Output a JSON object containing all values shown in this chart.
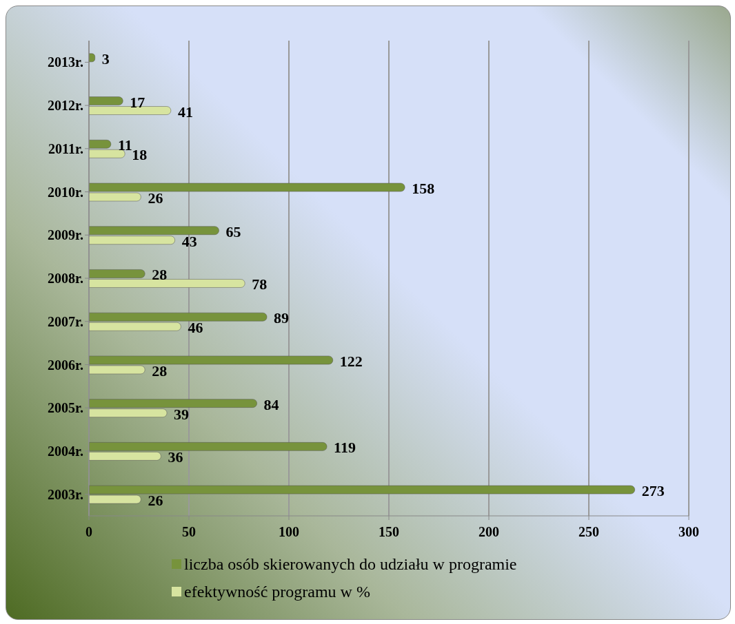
{
  "chart_data": {
    "type": "bar",
    "orientation": "horizontal",
    "categories": [
      "2013r.",
      "2012r.",
      "2011r.",
      "2010r.",
      "2009r.",
      "2008r.",
      "2007r.",
      "2006r.",
      "2005r.",
      "2004r.",
      "2003r."
    ],
    "series": [
      {
        "name": "liczba osób skierowanych do udziału w programie",
        "color": "#77933c",
        "values": [
          3,
          17,
          11,
          158,
          65,
          28,
          89,
          122,
          84,
          119,
          273
        ],
        "value_labels": [
          "3",
          "17",
          "11",
          "158",
          "65",
          "28",
          "89",
          "122",
          "84",
          "119",
          "273"
        ]
      },
      {
        "name": "efektywność programu w %",
        "color": "#d7e4a0",
        "values": [
          0,
          41,
          18,
          26,
          43,
          78,
          46,
          28,
          39,
          36,
          26
        ],
        "value_labels": [
          null,
          "41",
          "18",
          "26",
          "43",
          "78",
          "46",
          "28",
          "39",
          "36",
          "26"
        ]
      }
    ],
    "xlim": [
      0,
      300
    ],
    "xticks": [
      0,
      50,
      100,
      150,
      200,
      250,
      300
    ],
    "grid": "x",
    "legend": "bottom"
  }
}
